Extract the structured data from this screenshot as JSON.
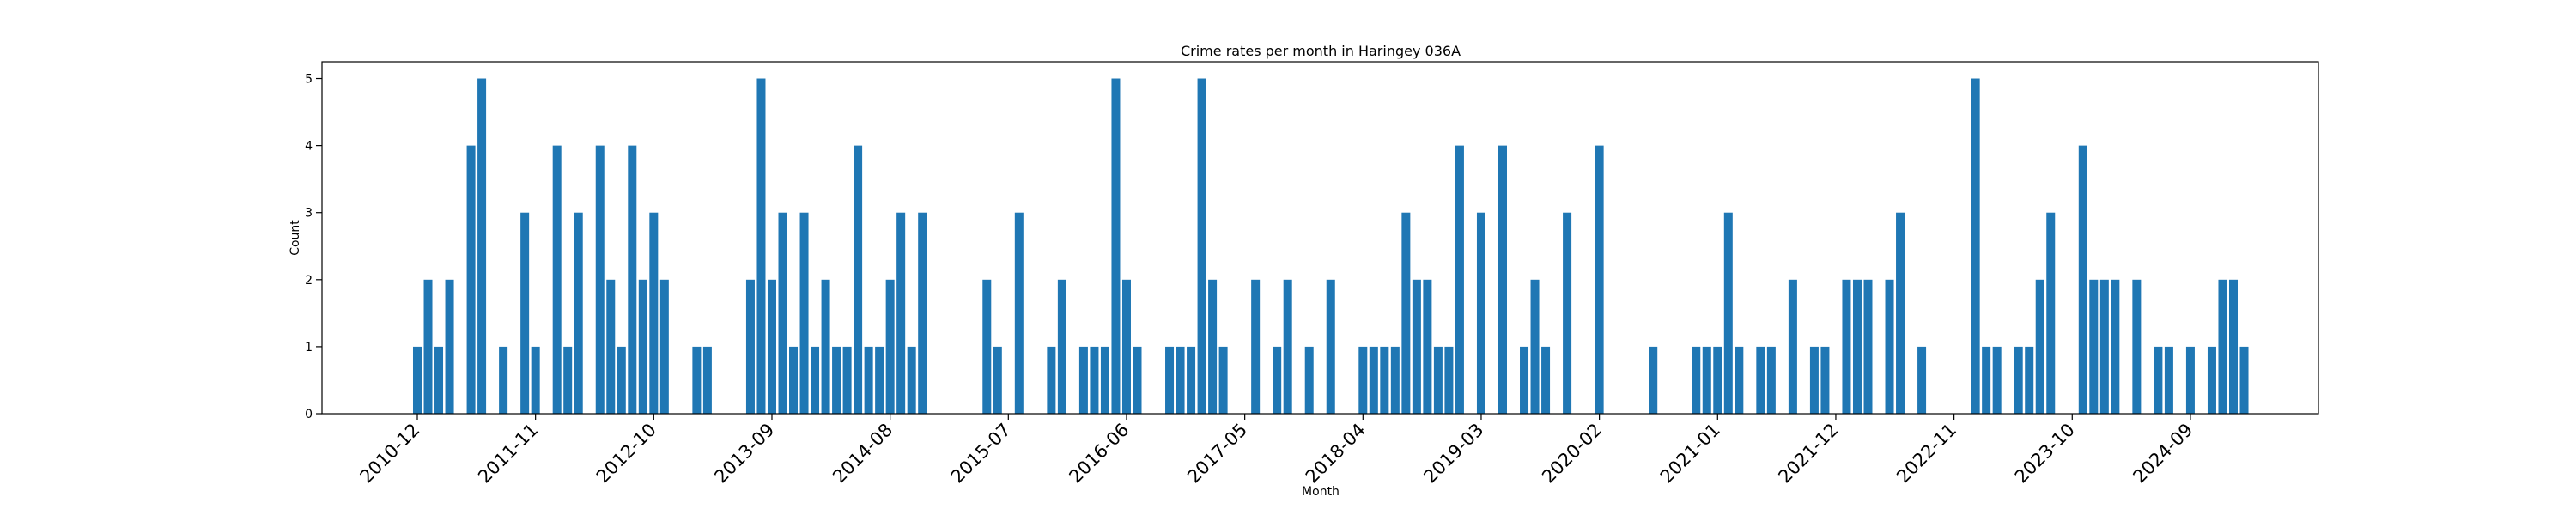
{
  "chart_data": {
    "type": "bar",
    "title": "Crime rates per month in Haringey 036A",
    "xlabel": "Month",
    "ylabel": "Count",
    "ylim": [
      0,
      5.25
    ],
    "yticks": [
      0,
      1,
      2,
      3,
      4,
      5
    ],
    "grid": false,
    "color": "#1f77b4",
    "x_start": "2010-12",
    "x_end": "2025-01",
    "x_ticks": [
      "2010-12",
      "2011-11",
      "2012-10",
      "2013-09",
      "2014-08",
      "2015-07",
      "2016-06",
      "2017-05",
      "2018-04",
      "2019-03",
      "2020-02",
      "2021-01",
      "2021-12",
      "2022-11",
      "2023-10",
      "2024-09"
    ],
    "bars": [
      {
        "month": "2010-12",
        "value": 1
      },
      {
        "month": "2011-01",
        "value": 2
      },
      {
        "month": "2011-02",
        "value": 1
      },
      {
        "month": "2011-03",
        "value": 2
      },
      {
        "month": "2011-05",
        "value": 4
      },
      {
        "month": "2011-06",
        "value": 5
      },
      {
        "month": "2011-08",
        "value": 1
      },
      {
        "month": "2011-10",
        "value": 3
      },
      {
        "month": "2011-11",
        "value": 1
      },
      {
        "month": "2012-01",
        "value": 4
      },
      {
        "month": "2012-02",
        "value": 1
      },
      {
        "month": "2012-03",
        "value": 3
      },
      {
        "month": "2012-05",
        "value": 4
      },
      {
        "month": "2012-06",
        "value": 2
      },
      {
        "month": "2012-07",
        "value": 1
      },
      {
        "month": "2012-08",
        "value": 4
      },
      {
        "month": "2012-09",
        "value": 2
      },
      {
        "month": "2012-10",
        "value": 3
      },
      {
        "month": "2012-11",
        "value": 2
      },
      {
        "month": "2013-02",
        "value": 1
      },
      {
        "month": "2013-03",
        "value": 1
      },
      {
        "month": "2013-07",
        "value": 2
      },
      {
        "month": "2013-08",
        "value": 5
      },
      {
        "month": "2013-09",
        "value": 2
      },
      {
        "month": "2013-10",
        "value": 3
      },
      {
        "month": "2013-11",
        "value": 1
      },
      {
        "month": "2013-12",
        "value": 3
      },
      {
        "month": "2014-01",
        "value": 1
      },
      {
        "month": "2014-02",
        "value": 2
      },
      {
        "month": "2014-03",
        "value": 1
      },
      {
        "month": "2014-04",
        "value": 1
      },
      {
        "month": "2014-05",
        "value": 4
      },
      {
        "month": "2014-06",
        "value": 1
      },
      {
        "month": "2014-07",
        "value": 1
      },
      {
        "month": "2014-08",
        "value": 2
      },
      {
        "month": "2014-09",
        "value": 3
      },
      {
        "month": "2014-10",
        "value": 1
      },
      {
        "month": "2014-11",
        "value": 3
      },
      {
        "month": "2015-05",
        "value": 2
      },
      {
        "month": "2015-06",
        "value": 1
      },
      {
        "month": "2015-08",
        "value": 3
      },
      {
        "month": "2015-11",
        "value": 1
      },
      {
        "month": "2015-12",
        "value": 2
      },
      {
        "month": "2016-02",
        "value": 1
      },
      {
        "month": "2016-03",
        "value": 1
      },
      {
        "month": "2016-04",
        "value": 1
      },
      {
        "month": "2016-05",
        "value": 5
      },
      {
        "month": "2016-06",
        "value": 2
      },
      {
        "month": "2016-07",
        "value": 1
      },
      {
        "month": "2016-10",
        "value": 1
      },
      {
        "month": "2016-11",
        "value": 1
      },
      {
        "month": "2016-12",
        "value": 1
      },
      {
        "month": "2017-01",
        "value": 5
      },
      {
        "month": "2017-02",
        "value": 2
      },
      {
        "month": "2017-03",
        "value": 1
      },
      {
        "month": "2017-06",
        "value": 2
      },
      {
        "month": "2017-08",
        "value": 1
      },
      {
        "month": "2017-09",
        "value": 2
      },
      {
        "month": "2017-11",
        "value": 1
      },
      {
        "month": "2018-01",
        "value": 2
      },
      {
        "month": "2018-04",
        "value": 1
      },
      {
        "month": "2018-05",
        "value": 1
      },
      {
        "month": "2018-06",
        "value": 1
      },
      {
        "month": "2018-07",
        "value": 1
      },
      {
        "month": "2018-08",
        "value": 3
      },
      {
        "month": "2018-09",
        "value": 2
      },
      {
        "month": "2018-10",
        "value": 2
      },
      {
        "month": "2018-11",
        "value": 1
      },
      {
        "month": "2018-12",
        "value": 1
      },
      {
        "month": "2019-01",
        "value": 4
      },
      {
        "month": "2019-03",
        "value": 3
      },
      {
        "month": "2019-05",
        "value": 4
      },
      {
        "month": "2019-07",
        "value": 1
      },
      {
        "month": "2019-08",
        "value": 2
      },
      {
        "month": "2019-09",
        "value": 1
      },
      {
        "month": "2019-11",
        "value": 3
      },
      {
        "month": "2020-02",
        "value": 4
      },
      {
        "month": "2020-07",
        "value": 1
      },
      {
        "month": "2020-11",
        "value": 1
      },
      {
        "month": "2020-12",
        "value": 1
      },
      {
        "month": "2021-01",
        "value": 1
      },
      {
        "month": "2021-02",
        "value": 3
      },
      {
        "month": "2021-03",
        "value": 1
      },
      {
        "month": "2021-05",
        "value": 1
      },
      {
        "month": "2021-06",
        "value": 1
      },
      {
        "month": "2021-08",
        "value": 2
      },
      {
        "month": "2021-10",
        "value": 1
      },
      {
        "month": "2021-11",
        "value": 1
      },
      {
        "month": "2022-01",
        "value": 2
      },
      {
        "month": "2022-02",
        "value": 2
      },
      {
        "month": "2022-03",
        "value": 2
      },
      {
        "month": "2022-05",
        "value": 2
      },
      {
        "month": "2022-06",
        "value": 3
      },
      {
        "month": "2022-08",
        "value": 1
      },
      {
        "month": "2023-01",
        "value": 5
      },
      {
        "month": "2023-02",
        "value": 1
      },
      {
        "month": "2023-03",
        "value": 1
      },
      {
        "month": "2023-05",
        "value": 1
      },
      {
        "month": "2023-06",
        "value": 1
      },
      {
        "month": "2023-07",
        "value": 2
      },
      {
        "month": "2023-08",
        "value": 3
      },
      {
        "month": "2023-11",
        "value": 4
      },
      {
        "month": "2023-12",
        "value": 2
      },
      {
        "month": "2024-01",
        "value": 2
      },
      {
        "month": "2024-02",
        "value": 2
      },
      {
        "month": "2024-04",
        "value": 2
      },
      {
        "month": "2024-06",
        "value": 1
      },
      {
        "month": "2024-07",
        "value": 1
      },
      {
        "month": "2024-09",
        "value": 1
      },
      {
        "month": "2024-11",
        "value": 1
      },
      {
        "month": "2024-12",
        "value": 2
      },
      {
        "month": "2025-01",
        "value": 2
      },
      {
        "month": "2025-02",
        "value": 1
      }
    ]
  }
}
